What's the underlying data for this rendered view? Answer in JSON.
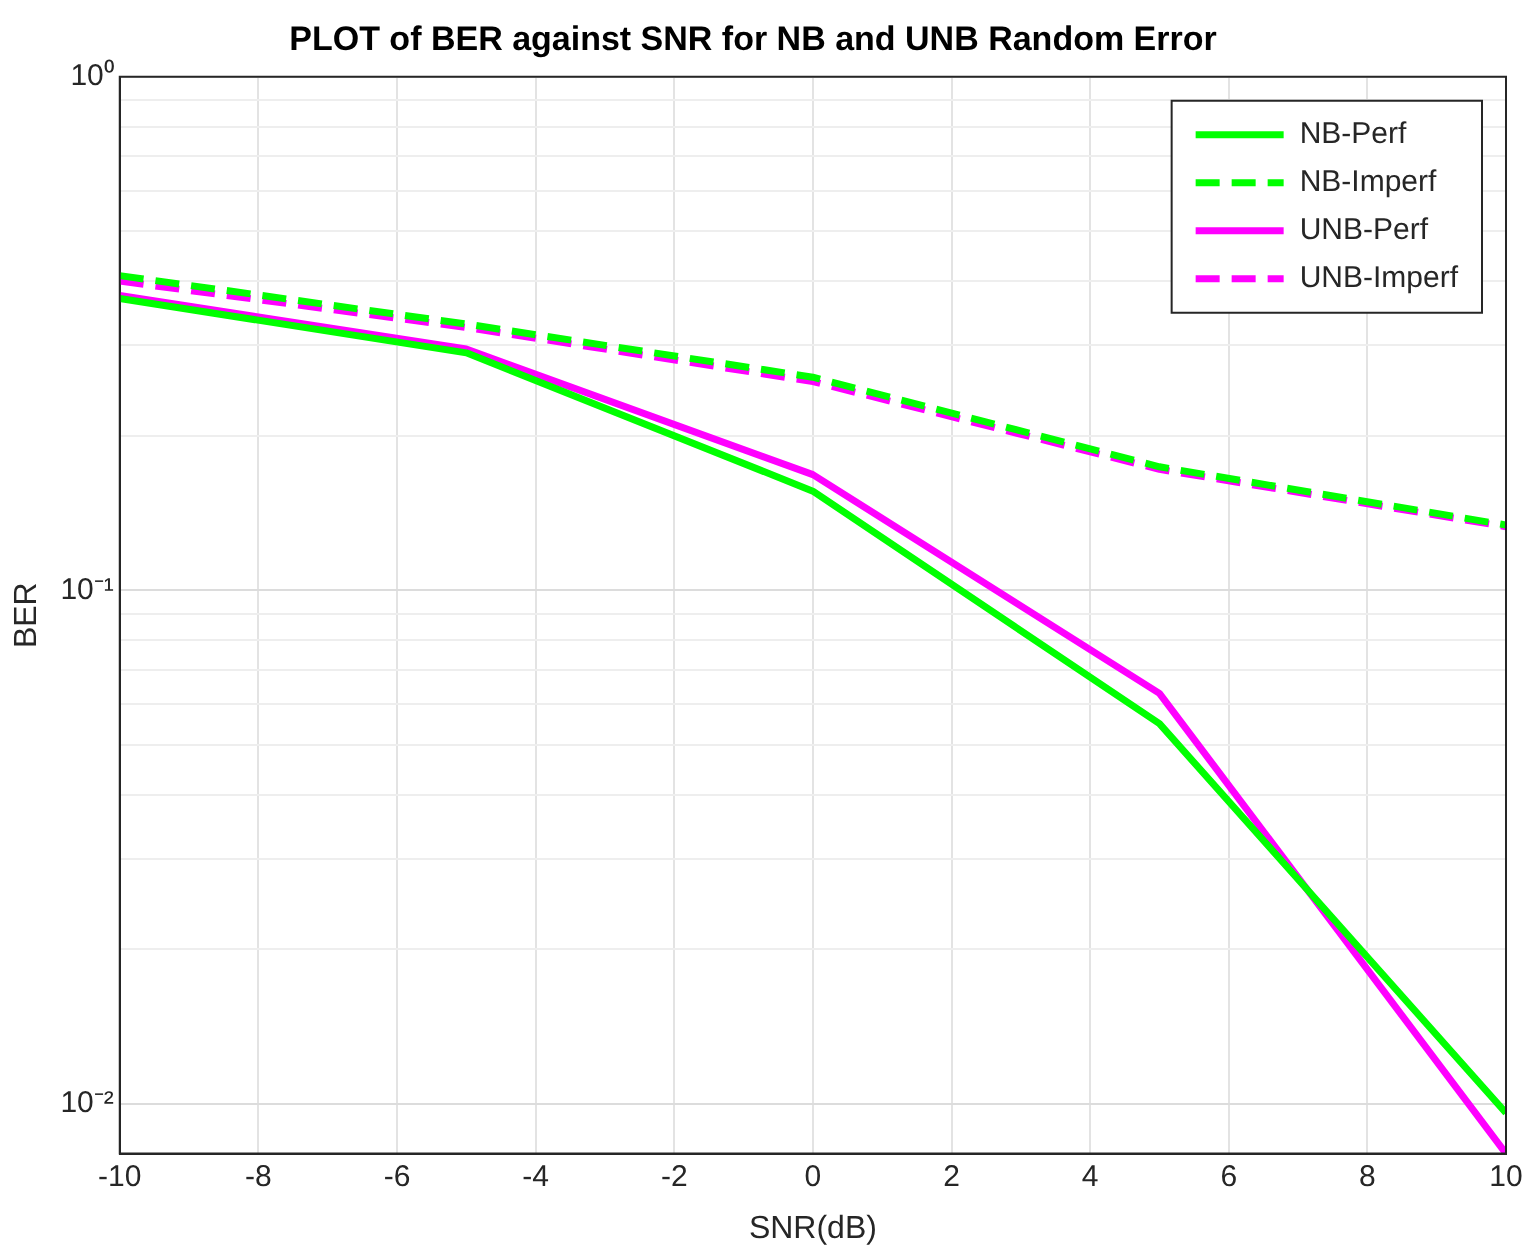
{
  "chart_data": {
    "type": "line",
    "title": "PLOT of BER against SNR for NB and UNB Random Error",
    "xlabel": "SNR(dB)",
    "ylabel": "BER",
    "x": [
      -10,
      -5,
      0,
      5,
      10
    ],
    "series": [
      {
        "name": "NB-Perf",
        "color": "#00ff00",
        "line_style": "solid",
        "values": [
          0.37,
          0.29,
          0.156,
          0.055,
          0.0096
        ]
      },
      {
        "name": "NB-Imperf",
        "color": "#00ff00",
        "line_style": "dashed",
        "values": [
          0.41,
          0.33,
          0.26,
          0.174,
          0.134
        ]
      },
      {
        "name": "UNB-Perf",
        "color": "#ff00ff",
        "line_style": "solid",
        "values": [
          0.375,
          0.295,
          0.168,
          0.063,
          0.008
        ]
      },
      {
        "name": "UNB-Imperf",
        "color": "#ff00ff",
        "line_style": "dashed",
        "values": [
          0.4,
          0.325,
          0.255,
          0.172,
          0.133
        ]
      }
    ],
    "log": "y",
    "xlim": [
      -10,
      10
    ],
    "xticks": [
      -10,
      -8,
      -6,
      -4,
      -2,
      0,
      2,
      4,
      6,
      8,
      10
    ],
    "ylim": [
      0.008,
      1
    ],
    "yticks": [
      {
        "value": 0.01,
        "label": "10⁻²"
      },
      {
        "value": 0.02,
        "label": null
      },
      {
        "value": 0.03,
        "label": null
      },
      {
        "value": 0.04,
        "label": null
      },
      {
        "value": 0.05,
        "label": null
      },
      {
        "value": 0.06,
        "label": null
      },
      {
        "value": 0.07,
        "label": null
      },
      {
        "value": 0.08,
        "label": null
      },
      {
        "value": 0.09,
        "label": null
      },
      {
        "value": 0.1,
        "label": "10⁻¹"
      },
      {
        "value": 0.2,
        "label": null
      },
      {
        "value": 0.3,
        "label": null
      },
      {
        "value": 0.4,
        "label": null
      },
      {
        "value": 0.5,
        "label": null
      },
      {
        "value": 0.6,
        "label": null
      },
      {
        "value": 0.7,
        "label": null
      },
      {
        "value": 0.8,
        "label": null
      },
      {
        "value": 0.9,
        "label": null
      },
      {
        "value": 1,
        "label": "10⁰"
      }
    ],
    "grid": true,
    "legend": "top right",
    "marker": "none"
  }
}
